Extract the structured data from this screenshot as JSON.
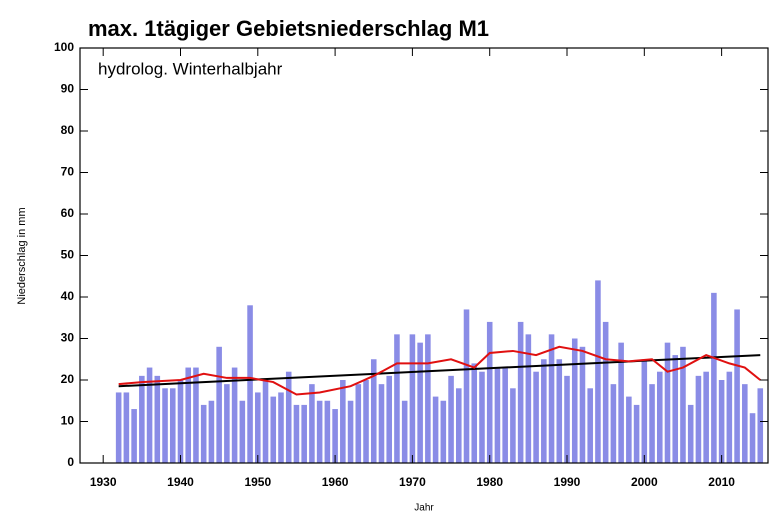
{
  "chart_data": {
    "type": "bar",
    "title": "max. 1tägiger Gebietsniederschlag M1",
    "annotation": "hydrolog. Winterhalbjahr",
    "y_label": "Niederschlag in mm",
    "x_label": "Jahr",
    "color": "#8a8ce6",
    "x": [
      1932,
      1933,
      1934,
      1935,
      1936,
      1937,
      1938,
      1939,
      1940,
      1941,
      1942,
      1943,
      1944,
      1945,
      1946,
      1947,
      1948,
      1949,
      1950,
      1951,
      1952,
      1953,
      1954,
      1955,
      1956,
      1957,
      1958,
      1959,
      1960,
      1961,
      1962,
      1963,
      1964,
      1965,
      1966,
      1967,
      1968,
      1969,
      1970,
      1971,
      1972,
      1973,
      1974,
      1975,
      1976,
      1977,
      1978,
      1979,
      1980,
      1981,
      1982,
      1983,
      1984,
      1985,
      1986,
      1987,
      1988,
      1989,
      1990,
      1991,
      1992,
      1993,
      1994,
      1995,
      1996,
      1997,
      1998,
      1999,
      2000,
      2001,
      2002,
      2003,
      2004,
      2005,
      2006,
      2007,
      2008,
      2009,
      2010,
      2011,
      2012,
      2013,
      2014,
      2015
    ],
    "values": [
      17,
      17,
      13,
      21,
      23,
      21,
      18,
      18,
      20,
      23,
      23,
      14,
      15,
      28,
      19,
      23,
      15,
      38,
      17,
      20,
      16,
      17,
      22,
      14,
      14,
      19,
      15,
      15,
      13,
      20,
      15,
      19,
      20,
      25,
      19,
      21,
      31,
      15,
      31,
      29,
      31,
      16,
      15,
      21,
      18,
      37,
      24,
      22,
      34,
      23,
      23,
      18,
      34,
      31,
      22,
      25,
      31,
      25,
      21,
      30,
      28,
      18,
      44,
      34,
      19,
      29,
      16,
      14,
      25,
      19,
      22,
      29,
      26,
      28,
      14,
      21,
      22,
      41,
      20,
      22,
      37,
      19,
      12,
      18
    ],
    "trend": {
      "color": "#000000",
      "x": [
        1932,
        2015
      ],
      "values": [
        18.5,
        26
      ]
    },
    "moving_average": {
      "color": "#e01010",
      "x": [
        1932,
        1935,
        1940,
        1943,
        1946,
        1949,
        1952,
        1955,
        1958,
        1962,
        1965,
        1968,
        1972,
        1975,
        1978,
        1980,
        1983,
        1986,
        1989,
        1992,
        1995,
        1998,
        2001,
        2003,
        2005,
        2008,
        2011,
        2013,
        2015
      ],
      "values": [
        19,
        19.5,
        20,
        21.5,
        20.5,
        20.5,
        19.5,
        16.5,
        17,
        18.5,
        21,
        24,
        24,
        25,
        23,
        26.5,
        27,
        26,
        28,
        27,
        25,
        24.5,
        25,
        22,
        23,
        26,
        24,
        23,
        20
      ]
    },
    "xlim": [
      1927,
      2016
    ],
    "ylim": [
      0,
      100
    ],
    "xticks": [
      1930,
      1940,
      1950,
      1960,
      1970,
      1980,
      1990,
      2000,
      2010
    ],
    "yticks": [
      0,
      10,
      20,
      30,
      40,
      50,
      60,
      70,
      80,
      90,
      100
    ]
  }
}
